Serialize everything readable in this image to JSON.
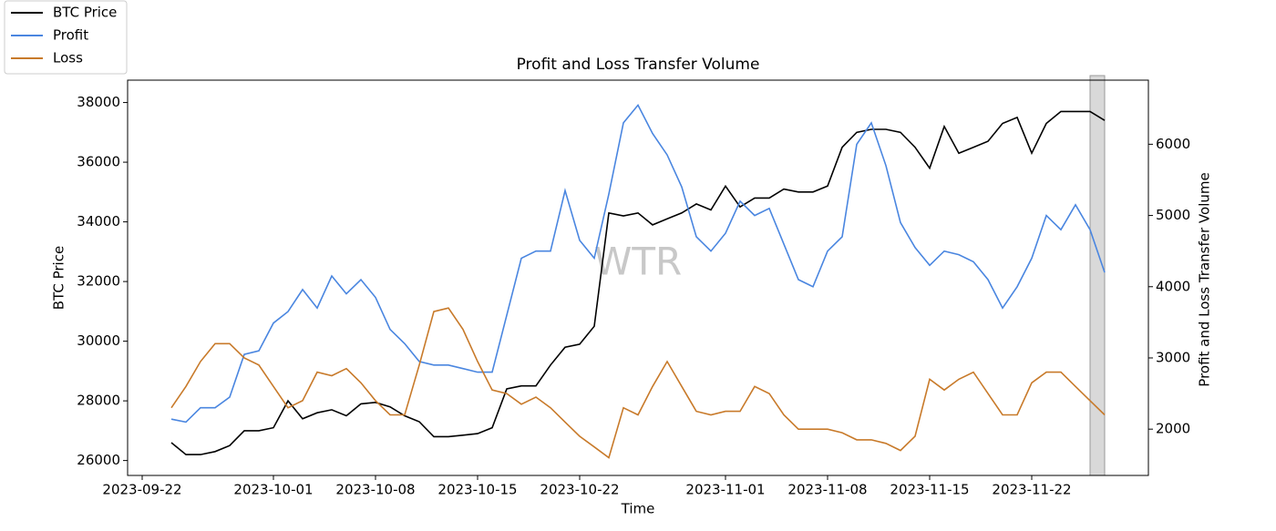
{
  "chart_data": {
    "type": "line",
    "title": "Profit and Loss Transfer Volume",
    "x_label": "Time",
    "y_label": "BTC Price",
    "y2_label": "Profit and Loss Transfer Volume",
    "watermark": "WTR",
    "legend": "upper left",
    "x": [
      "2023-09-24",
      "2023-09-25",
      "2023-09-26",
      "2023-09-27",
      "2023-09-28",
      "2023-09-29",
      "2023-09-30",
      "2023-10-01",
      "2023-10-02",
      "2023-10-03",
      "2023-10-04",
      "2023-10-05",
      "2023-10-06",
      "2023-10-07",
      "2023-10-08",
      "2023-10-09",
      "2023-10-10",
      "2023-10-11",
      "2023-10-12",
      "2023-10-13",
      "2023-10-14",
      "2023-10-15",
      "2023-10-16",
      "2023-10-17",
      "2023-10-18",
      "2023-10-19",
      "2023-10-20",
      "2023-10-21",
      "2023-10-22",
      "2023-10-23",
      "2023-10-24",
      "2023-10-25",
      "2023-10-26",
      "2023-10-27",
      "2023-10-28",
      "2023-10-29",
      "2023-10-30",
      "2023-10-31",
      "2023-11-01",
      "2023-11-02",
      "2023-11-03",
      "2023-11-04",
      "2023-11-05",
      "2023-11-06",
      "2023-11-07",
      "2023-11-08",
      "2023-11-09",
      "2023-11-10",
      "2023-11-11",
      "2023-11-12",
      "2023-11-13",
      "2023-11-14",
      "2023-11-15",
      "2023-11-16",
      "2023-11-17",
      "2023-11-18",
      "2023-11-19",
      "2023-11-20",
      "2023-11-21",
      "2023-11-22",
      "2023-11-23",
      "2023-11-24",
      "2023-11-25",
      "2023-11-26",
      "2023-11-27"
    ],
    "series": [
      {
        "name": "BTC Price",
        "color": "#000000",
        "axis": "y",
        "values": [
          26600,
          26200,
          26200,
          26300,
          26500,
          27000,
          27000,
          27100,
          28000,
          27400,
          27600,
          27700,
          27500,
          27900,
          27950,
          27800,
          27500,
          27300,
          26800,
          26800,
          26850,
          26900,
          27100,
          28400,
          28500,
          28500,
          29200,
          29800,
          29900,
          30500,
          34300,
          34200,
          34300,
          33900,
          34100,
          34300,
          34600,
          34400,
          35200,
          34500,
          34800,
          34800,
          35100,
          35000,
          35000,
          35200,
          36500,
          37000,
          37100,
          37100,
          37000,
          36500,
          35800,
          37200,
          36300,
          36500,
          36700,
          37300,
          37500,
          36300,
          37300,
          37700,
          37700,
          37700,
          37400
        ]
      },
      {
        "name": "Profit",
        "color": "#4a86e0",
        "axis": "y2",
        "values": [
          2140,
          2100,
          2300,
          2300,
          2450,
          3050,
          3100,
          3490,
          3650,
          3960,
          3700,
          4150,
          3900,
          4100,
          3850,
          3400,
          3200,
          2950,
          2900,
          2900,
          2850,
          2800,
          2800,
          3600,
          4400,
          4500,
          4500,
          5350,
          4650,
          4400,
          5300,
          6300,
          6550,
          6150,
          5850,
          5400,
          4700,
          4500,
          4750,
          5200,
          5000,
          5100,
          4600,
          4100,
          4000,
          4500,
          4700,
          6000,
          6300,
          5700,
          4900,
          4550,
          4300,
          4500,
          4450,
          4350,
          4100,
          3700,
          4000,
          4400,
          5000,
          4800,
          5150,
          4800,
          4200
        ]
      },
      {
        "name": "Loss",
        "color": "#c87a2a",
        "axis": "y2",
        "values": [
          2300,
          2600,
          2950,
          3200,
          3200,
          3000,
          2900,
          2600,
          2300,
          2400,
          2800,
          2750,
          2850,
          2650,
          2400,
          2200,
          2200,
          2900,
          3650,
          3700,
          3400,
          2950,
          2550,
          2500,
          2350,
          2450,
          2300,
          2100,
          1900,
          1750,
          1600,
          2300,
          2200,
          2600,
          2950,
          2600,
          2250,
          2200,
          2250,
          2250,
          2600,
          2500,
          2200,
          2000,
          2000,
          2000,
          1950,
          1850,
          1850,
          1800,
          1700,
          1900,
          2700,
          2550,
          2700,
          2800,
          2500,
          2200,
          2200,
          2650,
          2800,
          2800,
          2600,
          2400,
          2200
        ]
      }
    ],
    "shaded_span": {
      "x": [
        "2023-11-26",
        "2023-11-27"
      ],
      "color": "#d9d9d9"
    },
    "xlim": [
      "2023-09-21",
      "2023-11-30"
    ],
    "xticks": [
      "2023-09-22",
      "2023-10-01",
      "2023-10-08",
      "2023-10-15",
      "2023-10-22",
      "2023-11-01",
      "2023-11-08",
      "2023-11-15",
      "2023-11-22"
    ],
    "ylim": [
      25500,
      38750
    ],
    "yticks": [
      26000,
      28000,
      30000,
      32000,
      34000,
      36000,
      38000
    ],
    "y2lim": [
      1350,
      6900
    ],
    "y2ticks": [
      2000,
      3000,
      4000,
      5000,
      6000
    ]
  }
}
